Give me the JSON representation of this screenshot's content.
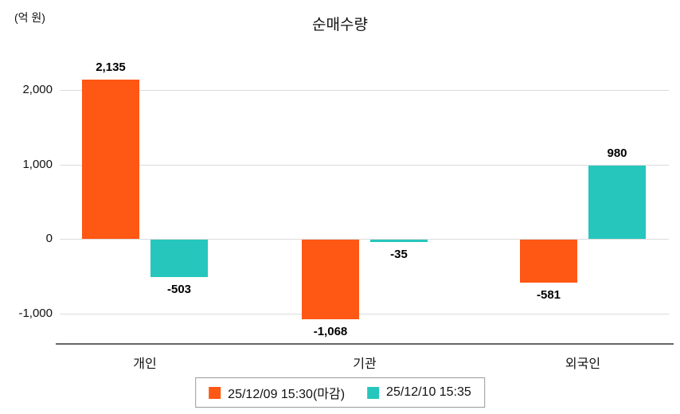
{
  "header": {
    "title": "순매수량",
    "unit_label": "(억 원)"
  },
  "chart_data": {
    "type": "bar",
    "title": "순매수량",
    "ylabel": "(억 원)",
    "categories": [
      "개인",
      "기관",
      "외국인"
    ],
    "series": [
      {
        "name": "25/12/09 15:30(마감)",
        "color": "#FF5714",
        "values": [
          2135,
          -1068,
          -581
        ]
      },
      {
        "name": "25/12/10 15:35",
        "color": "#26C6BD",
        "values": [
          -503,
          -35,
          980
        ]
      }
    ],
    "yticks": [
      -1000,
      0,
      1000,
      2000
    ],
    "ylim": [
      -1300,
      2400
    ],
    "grid": true,
    "legend_position": "bottom",
    "bar_value_labels": true
  }
}
